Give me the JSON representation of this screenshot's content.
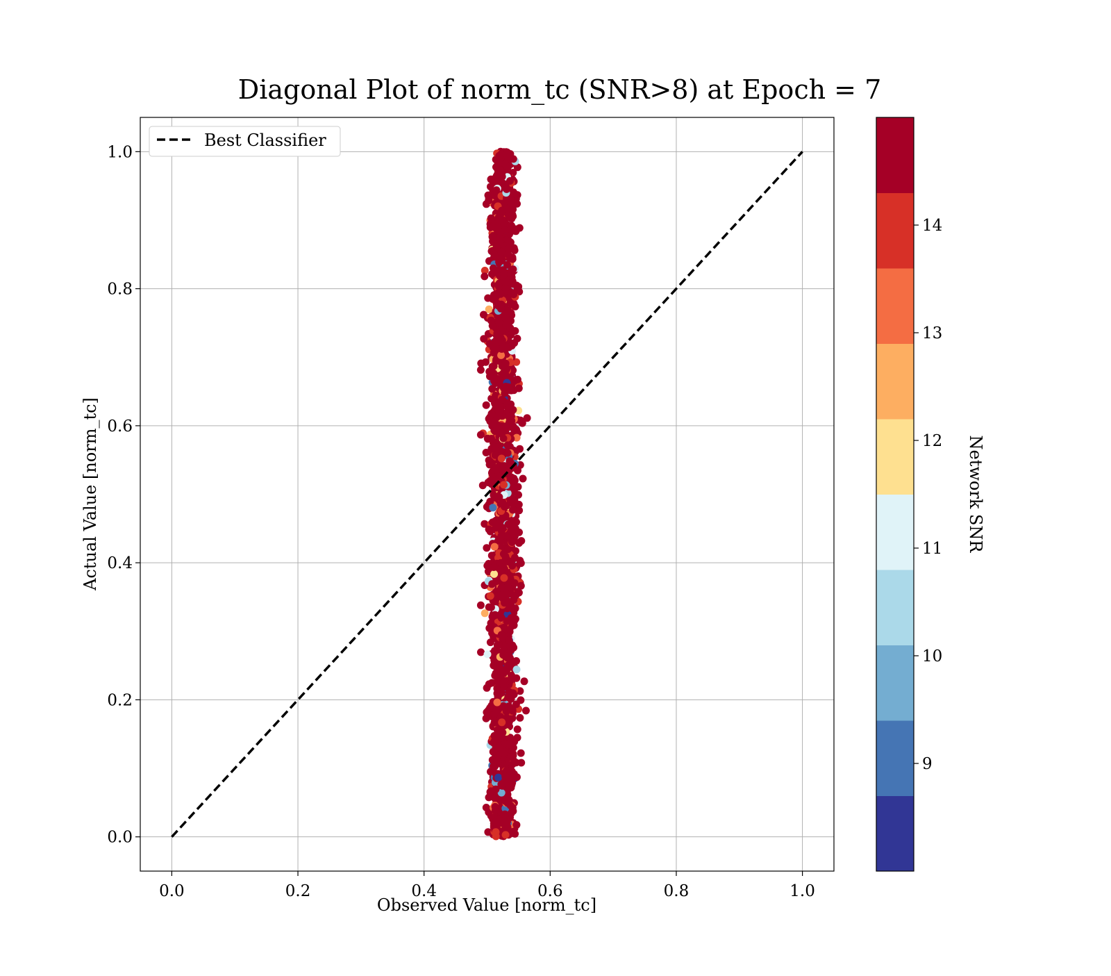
{
  "chart_data": {
    "type": "scatter",
    "title": "Diagonal Plot of norm_tc (SNR>8) at Epoch = 7",
    "xlabel": "Observed Value [norm_tc]",
    "ylabel": "Actual Value [norm_tc]",
    "xlim": [
      -0.05,
      1.05
    ],
    "ylim": [
      -0.05,
      1.05
    ],
    "xticks": [
      "0.0",
      "0.2",
      "0.4",
      "0.6",
      "0.8",
      "1.0"
    ],
    "yticks": [
      "0.0",
      "0.2",
      "0.4",
      "0.6",
      "0.8",
      "1.0"
    ],
    "grid": true,
    "legend": {
      "placement": "top-left",
      "entries": [
        "Best Classifier"
      ]
    },
    "reference_line": {
      "name": "Best Classifier",
      "style": "dashed",
      "color": "#000000",
      "x": [
        0.0,
        1.0
      ],
      "y": [
        0.0,
        1.0
      ]
    },
    "scatter_cluster": {
      "x_center": 0.525,
      "x_spread_min": 0.49,
      "x_spread_max": 0.585,
      "y_range": [
        0.0,
        1.0
      ],
      "dominant_color": "#a50026",
      "color_by": "Network SNR"
    },
    "colorbar": {
      "label": "Network SNR",
      "range": [
        8.0,
        15.0
      ],
      "ticks": [
        "9",
        "10",
        "11",
        "12",
        "13",
        "14"
      ],
      "tick_values": [
        9,
        10,
        11,
        12,
        13,
        14
      ],
      "colors": [
        "#313695",
        "#4575b4",
        "#74add1",
        "#abd9e9",
        "#e0f3f8",
        "#fee090",
        "#fdae61",
        "#f46d43",
        "#d73027",
        "#a50026"
      ]
    }
  }
}
